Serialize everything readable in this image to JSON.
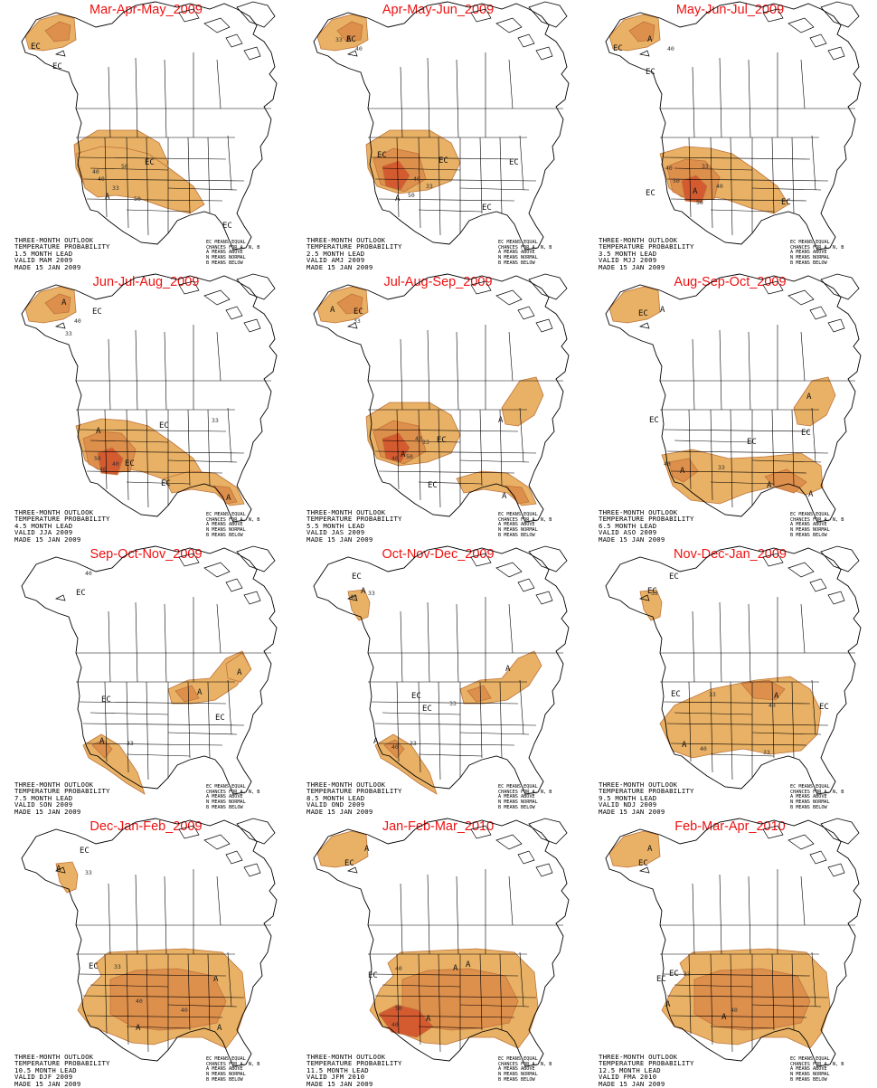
{
  "colors": {
    "above_33": "#e8b165",
    "above_40": "#dd8f4c",
    "above_50": "#d45a30",
    "contour": "#c0733b",
    "title": "#ee1111"
  },
  "panels": [
    {
      "title": "Mar-Apr-May_2009",
      "info": [
        "THREE-MONTH OUTLOOK",
        "TEMPERATURE PROBABILITY",
        "1.5 MONTH LEAD",
        "VALID MAM 2009",
        "MADE 15 JAN 2009"
      ],
      "legend": [
        "EC MEANS EQUAL",
        "CHANCES FOR A, N, B",
        "A MEANS ABOVE",
        "N MEANS NORMAL",
        "B MEANS BELOW"
      ],
      "labels": [
        "EC",
        "EC",
        "EC",
        "A",
        "40",
        "50",
        "33",
        "40",
        "50",
        "EC"
      ]
    },
    {
      "title": "Apr-May-Jun_2009",
      "info": [
        "THREE-MONTH OUTLOOK",
        "TEMPERATURE PROBABILITY",
        "2.5 MONTH LEAD",
        "VALID AMJ 2009",
        "MADE 15 JAN 2009"
      ],
      "legend": [
        "EC MEANS EQUAL",
        "CHANCES FOR A, N, B",
        "A MEANS ABOVE",
        "N MEANS NORMAL",
        "B MEANS BELOW"
      ],
      "labels": [
        "EC",
        "A",
        "40",
        "33",
        "EC",
        "EC",
        "EC",
        "A",
        "50",
        "40",
        "33",
        "EC"
      ]
    },
    {
      "title": "May-Jun-Jul_2009",
      "info": [
        "THREE-MONTH OUTLOOK",
        "TEMPERATURE PROBABILITY",
        "3.5 MONTH LEAD",
        "VALID MJJ 2009",
        "MADE 15 JAN 2009"
      ],
      "legend": [
        "EC MEANS EQUAL",
        "CHANCES FOR A, N, B",
        "A MEANS ABOVE",
        "N MEANS NORMAL",
        "B MEANS BELOW"
      ],
      "labels": [
        "EC",
        "A",
        "40",
        "EC",
        "A",
        "40",
        "50",
        "33",
        "40",
        "50",
        "EC",
        "EC"
      ]
    },
    {
      "title": "Jun-Jul-Aug_2009",
      "info": [
        "THREE-MONTH OUTLOOK",
        "TEMPERATURE PROBABILITY",
        "4.5 MONTH LEAD",
        "VALID JJA 2009",
        "MADE 15 JAN 2009"
      ],
      "legend": [
        "EC MEANS EQUAL",
        "CHANCES FOR A, N, B",
        "A MEANS ABOVE",
        "N MEANS NORMAL",
        "B MEANS BELOW"
      ],
      "labels": [
        "A",
        "40",
        "33",
        "EC",
        "EC",
        "33",
        "A",
        "40",
        "50",
        "40",
        "EC",
        "EC",
        "A"
      ]
    },
    {
      "title": "Jul-Aug-Sep_2009",
      "info": [
        "THREE-MONTH OUTLOOK",
        "TEMPERATURE PROBABILITY",
        "5.5 MONTH LEAD",
        "VALID JAS 2009",
        "MADE 15 JAN 2009"
      ],
      "legend": [
        "EC MEANS EQUAL",
        "CHANCES FOR A, N, B",
        "A MEANS ABOVE",
        "N MEANS NORMAL",
        "B MEANS BELOW"
      ],
      "labels": [
        "A",
        "33",
        "EC",
        "A",
        "40",
        "50",
        "33",
        "40",
        "EC",
        "A",
        "EC",
        "A"
      ]
    },
    {
      "title": "Aug-Sep-Oct_2009",
      "info": [
        "THREE-MONTH OUTLOOK",
        "TEMPERATURE PROBABILITY",
        "6.5 MONTH LEAD",
        "VALID ASO 2009",
        "MADE 15 JAN 2009"
      ],
      "legend": [
        "EC MEANS EQUAL",
        "CHANCES FOR A, N, B",
        "A MEANS ABOVE",
        "N MEANS NORMAL",
        "B MEANS BELOW"
      ],
      "labels": [
        "A",
        "EC",
        "A",
        "EC",
        "EC",
        "EC",
        "A",
        "40",
        "33",
        "A",
        "A"
      ]
    },
    {
      "title": "Sep-Oct-Nov_2009",
      "info": [
        "THREE-MONTH OUTLOOK",
        "TEMPERATURE PROBABILITY",
        "7.5 MONTH LEAD",
        "VALID SON 2009",
        "MADE 15 JAN 2009"
      ],
      "legend": [
        "EC MEANS EQUAL",
        "CHANCES FOR A, N, B",
        "A MEANS ABOVE",
        "N MEANS NORMAL",
        "B MEANS BELOW"
      ],
      "labels": [
        "40",
        "EC",
        "A",
        "EC",
        "A",
        "EC",
        "A",
        "33"
      ]
    },
    {
      "title": "Oct-Nov-Dec_2009",
      "info": [
        "THREE-MONTH OUTLOOK",
        "TEMPERATURE PROBABILITY",
        "8.5 MONTH LEAD",
        "VALID OND 2009",
        "MADE 15 JAN 2009"
      ],
      "legend": [
        "EC MEANS EQUAL",
        "CHANCES FOR A, N, B",
        "A MEANS ABOVE",
        "N MEANS NORMAL",
        "B MEANS BELOW"
      ],
      "labels": [
        "EC",
        "A",
        "40",
        "33",
        "EC",
        "A",
        "33",
        "EC",
        "A",
        "40",
        "33"
      ]
    },
    {
      "title": "Nov-Dec-Jan_2009",
      "info": [
        "THREE-MONTH OUTLOOK",
        "TEMPERATURE PROBABILITY",
        "9.5 MONTH LEAD",
        "VALID NDJ 2009",
        "MADE 15 JAN 2009"
      ],
      "legend": [
        "EC MEANS EQUAL",
        "CHANCES FOR A, N, B",
        "A MEANS ABOVE",
        "N MEANS NORMAL",
        "B MEANS BELOW"
      ],
      "labels": [
        "EC",
        "EC",
        "33",
        "EC",
        "33",
        "A",
        "40",
        "EC",
        "A",
        "40",
        "33"
      ]
    },
    {
      "title": "Dec-Jan-Feb_2009",
      "info": [
        "THREE-MONTH OUTLOOK",
        "TEMPERATURE PROBABILITY",
        "10.5 MONTH LEAD",
        "VALID DJF 2009",
        "MADE 15 JAN 2009"
      ],
      "legend": [
        "EC MEANS EQUAL",
        "CHANCES FOR A, N, B",
        "A MEANS ABOVE",
        "N MEANS NORMAL",
        "B MEANS BELOW"
      ],
      "labels": [
        "EC",
        "A",
        "33",
        "EC",
        "33",
        "A",
        "40",
        "A",
        "A",
        "40"
      ]
    },
    {
      "title": "Jan-Feb-Mar_2010",
      "info": [
        "THREE-MONTH OUTLOOK",
        "TEMPERATURE PROBABILITY",
        "11.5 MONTH LEAD",
        "VALID JFM 2010",
        "MADE 15 JAN 2009"
      ],
      "legend": [
        "EC MEANS EQUAL",
        "CHANCES FOR A, N, B",
        "A MEANS ABOVE",
        "N MEANS NORMAL",
        "B MEANS BELOW"
      ],
      "labels": [
        "A",
        "EC",
        "EC",
        "40",
        "A",
        "A",
        "40",
        "50",
        "A"
      ]
    },
    {
      "title": "Feb-Mar-Apr_2010",
      "info": [
        "THREE-MONTH OUTLOOK",
        "TEMPERATURE PROBABILITY",
        "12.5 MONTH LEAD",
        "VALID FMA 2010",
        "MADE 15 JAN 2009"
      ],
      "legend": [
        "EC MEANS EQUAL",
        "CHANCES FOR A, N, B",
        "A MEANS ABOVE",
        "N MEANS NORMAL",
        "B MEANS BELOW"
      ],
      "labels": [
        "A",
        "EC",
        "EC",
        "33",
        "EC",
        "A",
        "40",
        "A"
      ]
    }
  ]
}
